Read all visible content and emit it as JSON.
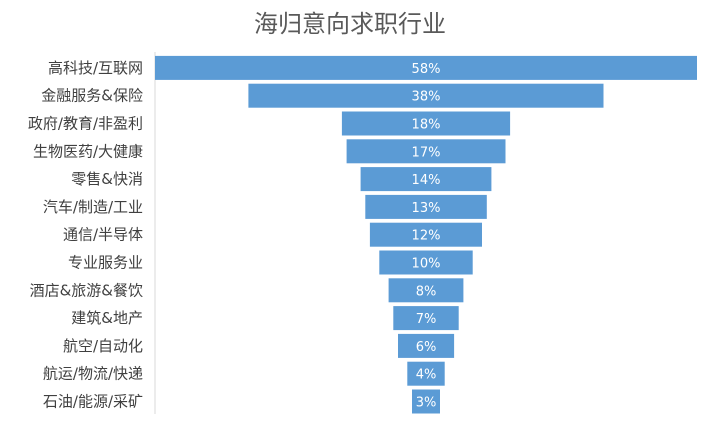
{
  "chart_data": {
    "type": "bar",
    "orientation": "horizontal-funnel",
    "title": "海归意向求职行业",
    "categories": [
      "高科技/互联网",
      "金融服务&保险",
      "政府/教育/非盈利",
      "生物医药/大健康",
      "零售&快消",
      "汽车/制造/工业",
      "通信/半导体",
      "专业服务业",
      "酒店&旅游&餐饮",
      "建筑&地产",
      "航空/自动化",
      "航运/物流/快递",
      "石油/能源/采矿"
    ],
    "values": [
      58,
      38,
      18,
      17,
      14,
      13,
      12,
      10,
      8,
      7,
      6,
      4,
      3
    ],
    "value_labels": [
      "58%",
      "38%",
      "18%",
      "17%",
      "14%",
      "13%",
      "12%",
      "10%",
      "8%",
      "7%",
      "6%",
      "4%",
      "3%"
    ],
    "unit": "%",
    "bar_color": "#5B9BD5",
    "grid": false,
    "legend": "none"
  }
}
